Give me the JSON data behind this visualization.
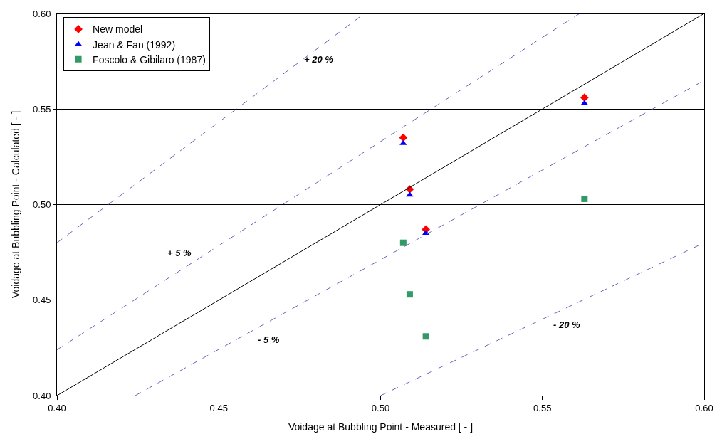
{
  "chart_data": {
    "type": "scatter",
    "xlabel": "Voidage at Bubbling Point - Measured [ - ]",
    "ylabel": "Voidage at Bubbling Point - Calculated [ - ]",
    "xlim": [
      0.4,
      0.6
    ],
    "ylim": [
      0.4,
      0.6
    ],
    "xticks": [
      {
        "value": 0.4,
        "label": "0.40"
      },
      {
        "value": 0.45,
        "label": "0.45"
      },
      {
        "value": 0.5,
        "label": "0.50"
      },
      {
        "value": 0.55,
        "label": "0.55"
      },
      {
        "value": 0.6,
        "label": "0.60"
      }
    ],
    "yticks": [
      {
        "value": 0.4,
        "label": "0.40"
      },
      {
        "value": 0.45,
        "label": "0.45"
      },
      {
        "value": 0.5,
        "label": "0.50"
      },
      {
        "value": 0.55,
        "label": "0.55"
      },
      {
        "value": 0.6,
        "label": "0.60"
      }
    ],
    "grid": "y",
    "legend": "top left",
    "series": [
      {
        "name": "New model",
        "color": "#ff0000",
        "marker": "diamond",
        "x": [
          0.507,
          0.509,
          0.514,
          0.563
        ],
        "values": [
          0.535,
          0.508,
          0.487,
          0.556
        ]
      },
      {
        "name": "Jean & Fan (1992)",
        "color": "#0000ff",
        "marker": "triangle",
        "x": [
          0.507,
          0.509,
          0.514,
          0.563
        ],
        "values": [
          0.532,
          0.505,
          0.485,
          0.553
        ]
      },
      {
        "name": "Foscolo & Gibilaro (1987)",
        "color": "#339966",
        "marker": "square",
        "x": [
          0.507,
          0.509,
          0.514,
          0.563
        ],
        "values": [
          0.48,
          0.453,
          0.431,
          0.503
        ]
      },
      {
        "type": "line",
        "color": "#000000",
        "line_style": "solid",
        "marker": "none",
        "x": [
          0.4,
          0.6
        ],
        "values": [
          0.4,
          0.6
        ]
      },
      {
        "type": "line",
        "name": "+ 5 %",
        "color": "#6666bb",
        "line_style": "dashed",
        "marker": "none",
        "x": [
          0.4,
          0.5615
        ],
        "values": [
          0.424,
          0.6
        ]
      },
      {
        "type": "line",
        "name": "- 5 %",
        "color": "#6666bb",
        "line_style": "dashed",
        "marker": "none",
        "x": [
          0.4242,
          0.6
        ],
        "values": [
          0.4,
          0.565
        ]
      },
      {
        "type": "line",
        "name": "+ 20 %",
        "color": "#6666bb",
        "line_style": "dashed",
        "marker": "none",
        "x": [
          0.4,
          0.495
        ],
        "values": [
          0.48,
          0.6
        ]
      },
      {
        "type": "line",
        "name": "- 20 %",
        "color": "#6666bb",
        "line_style": "dashed",
        "marker": "none",
        "x": [
          0.5,
          0.6
        ],
        "values": [
          0.4,
          0.48
        ]
      }
    ]
  }
}
